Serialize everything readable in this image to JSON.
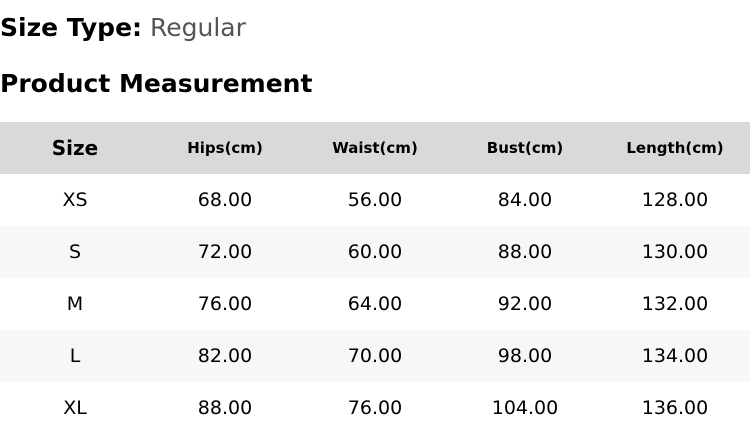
{
  "size_type": {
    "label": "Size Type:",
    "value": "Regular"
  },
  "title": "Product Measurement",
  "table": {
    "headers": [
      "Size",
      "Hips(cm)",
      "Waist(cm)",
      "Bust(cm)",
      "Length(cm)"
    ],
    "rows": [
      [
        "XS",
        "68.00",
        "56.00",
        "84.00",
        "128.00"
      ],
      [
        "S",
        "72.00",
        "60.00",
        "88.00",
        "130.00"
      ],
      [
        "M",
        "76.00",
        "64.00",
        "92.00",
        "132.00"
      ],
      [
        "L",
        "82.00",
        "70.00",
        "98.00",
        "134.00"
      ],
      [
        "XL",
        "88.00",
        "76.00",
        "104.00",
        "136.00"
      ]
    ]
  }
}
